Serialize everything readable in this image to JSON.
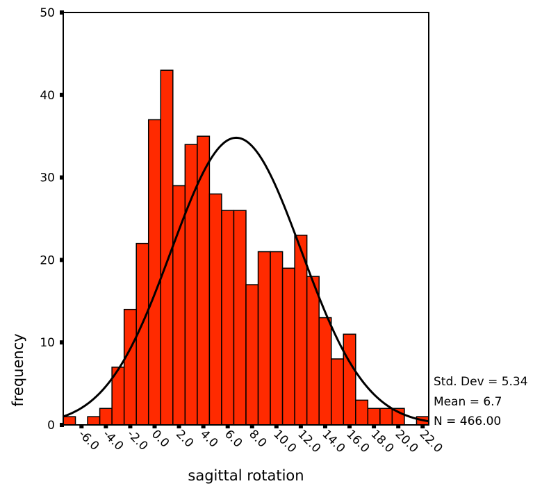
{
  "chart_data": {
    "type": "bar",
    "xlabel": "sagittal rotation",
    "ylabel": "frequency",
    "bin_width": 1.0,
    "bin_centers": [
      -7.0,
      -6.0,
      -5.0,
      -4.0,
      -3.0,
      -2.0,
      -1.0,
      0.0,
      1.0,
      2.0,
      3.0,
      4.0,
      5.0,
      6.0,
      7.0,
      8.0,
      9.0,
      10.0,
      11.0,
      12.0,
      13.0,
      14.0,
      15.0,
      16.0,
      17.0,
      18.0,
      19.0,
      20.0,
      21.0,
      22.0
    ],
    "values": [
      1,
      0,
      1,
      2,
      7,
      14,
      22,
      37,
      43,
      29,
      34,
      35,
      28,
      26,
      26,
      17,
      21,
      21,
      19,
      23,
      18,
      13,
      8,
      11,
      3,
      2,
      2,
      2,
      0,
      1
    ],
    "x_ticks": [
      "-6.0",
      "-4.0",
      "-2.0",
      "0.0",
      "2.0",
      "4.0",
      "6.0",
      "8.0",
      "10.0",
      "12.0",
      "14.0",
      "16.0",
      "18.0",
      "20.0",
      "22.0"
    ],
    "x_tick_values": [
      -6,
      -4,
      -2,
      0,
      2,
      4,
      6,
      8,
      10,
      12,
      14,
      16,
      18,
      20,
      22
    ],
    "y_ticks": [
      "0",
      "10",
      "20",
      "30",
      "40",
      "50"
    ],
    "y_tick_values": [
      0,
      10,
      20,
      30,
      40,
      50
    ],
    "xlim": [
      -7.5,
      22.5
    ],
    "ylim": [
      0,
      50
    ],
    "normal_curve": {
      "mean": 6.7,
      "std": 5.34,
      "n": 466
    },
    "stats": [
      "Std. Dev = 5.34",
      "Mean = 6.7",
      "N = 466.00"
    ],
    "bar_color": "#ff2a00",
    "bar_edge_color": "#000000",
    "grid": false
  }
}
